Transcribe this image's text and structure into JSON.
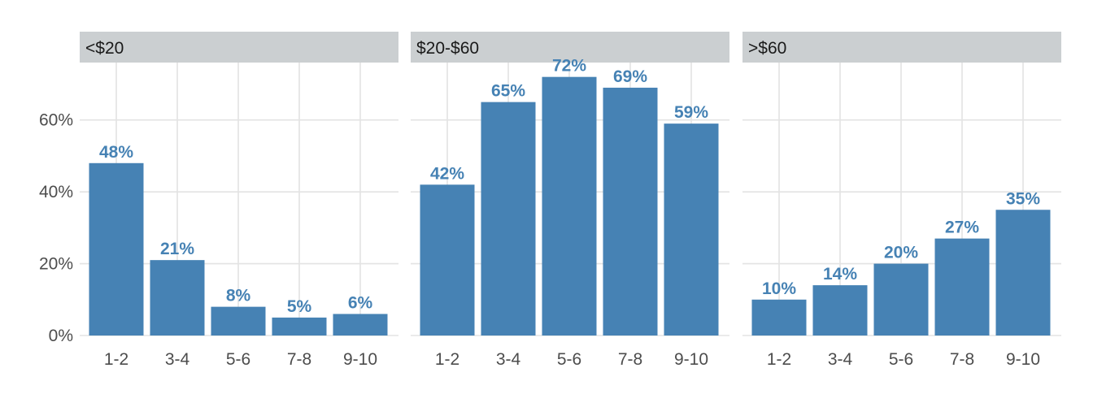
{
  "chart_data": {
    "type": "bar",
    "layout": "small-multiples",
    "categories": [
      "1-2",
      "3-4",
      "5-6",
      "7-8",
      "9-10"
    ],
    "y_axis": {
      "ticks": [
        0,
        20,
        40,
        60
      ],
      "tick_labels": [
        "0%",
        "20%",
        "40%",
        "60%"
      ],
      "ylim": [
        0,
        76
      ]
    },
    "grid": true,
    "bar_color": "#4682B4",
    "label_color": "#4682B4",
    "strip_color": "#CBCFD1",
    "grid_color": "#E3E3E3",
    "panels": [
      {
        "title": "<$20",
        "values": [
          48,
          21,
          8,
          5,
          6
        ],
        "labels": [
          "48%",
          "21%",
          "8%",
          "5%",
          "6%"
        ]
      },
      {
        "title": "$20-$60",
        "values": [
          42,
          65,
          72,
          69,
          59
        ],
        "labels": [
          "42%",
          "65%",
          "72%",
          "69%",
          "59%"
        ]
      },
      {
        "title": ">$60",
        "values": [
          10,
          14,
          20,
          27,
          35
        ],
        "labels": [
          "10%",
          "14%",
          "20%",
          "27%",
          "35%"
        ]
      }
    ]
  }
}
